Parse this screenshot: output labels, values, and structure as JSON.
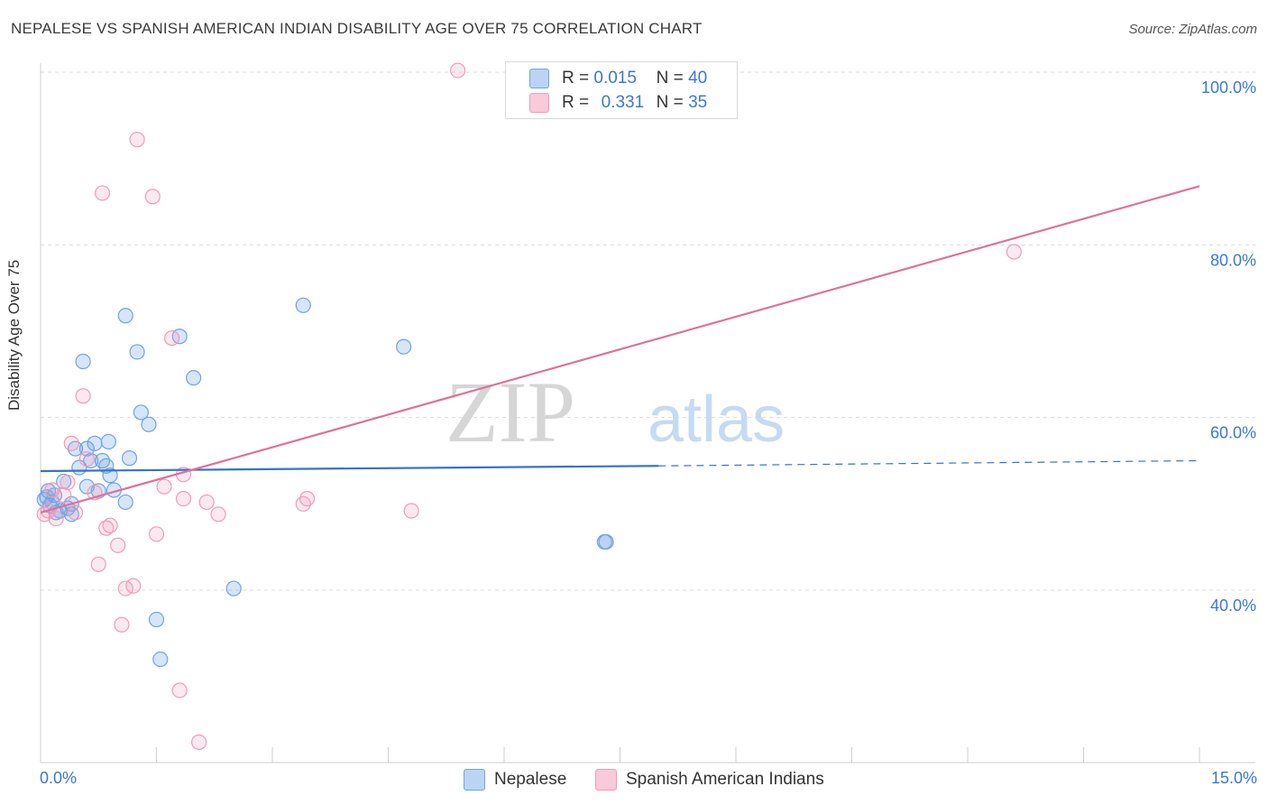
{
  "header": {
    "title": "NEPALESE VS SPANISH AMERICAN INDIAN DISABILITY AGE OVER 75 CORRELATION CHART",
    "source": "Source: ZipAtlas.com"
  },
  "watermark": {
    "part1": "ZIP",
    "part2": "atlas"
  },
  "legend": {
    "rows": [
      {
        "r_label": "R =",
        "r_value": "0.015",
        "n_label": "N =",
        "n_value": "40"
      },
      {
        "r_label": "R =",
        "r_value": "0.331",
        "n_label": "N =",
        "n_value": "35"
      }
    ],
    "bottom": [
      "Nepalese",
      "Spanish American Indians"
    ]
  },
  "chart_data": {
    "type": "scatter",
    "title": "NEPALESE VS SPANISH AMERICAN INDIAN DISABILITY AGE OVER 75 CORRELATION CHART",
    "xlabel": "",
    "ylabel": "Disability Age Over 75",
    "xlim": [
      0,
      15
    ],
    "ylim": [
      20,
      102
    ],
    "x_tick_labels": [
      "0.0%",
      "15.0%"
    ],
    "y_ticks": [
      40,
      60,
      80,
      100
    ],
    "y_tick_labels": [
      "40.0%",
      "60.0%",
      "80.0%",
      "100.0%"
    ],
    "colors": {
      "nepalese": "#6fa3e6",
      "nepalese_line": "#3474c8",
      "spanish": "#f29ab8",
      "spanish_line": "#e0709a",
      "axis_text": "#3a78d0"
    },
    "series": [
      {
        "name": "Nepalese",
        "R": 0.015,
        "N": 40,
        "trend": {
          "x_start": 0,
          "y_start": 53.8,
          "x_solid_end": 8.0,
          "y_solid_end": 54.4,
          "x_end": 15.0,
          "y_end": 55.0
        },
        "points": [
          [
            0.05,
            50.5
          ],
          [
            0.08,
            50.8
          ],
          [
            0.1,
            51.5
          ],
          [
            0.12,
            49.8
          ],
          [
            0.15,
            50.2
          ],
          [
            0.2,
            49.0
          ],
          [
            0.25,
            49.2
          ],
          [
            0.3,
            52.6
          ],
          [
            0.35,
            49.5
          ],
          [
            0.4,
            48.8
          ],
          [
            0.45,
            56.4
          ],
          [
            0.5,
            54.2
          ],
          [
            0.55,
            66.5
          ],
          [
            0.6,
            56.4
          ],
          [
            0.65,
            55.0
          ],
          [
            0.7,
            57.0
          ],
          [
            0.75,
            51.5
          ],
          [
            0.8,
            55.0
          ],
          [
            0.85,
            54.4
          ],
          [
            0.9,
            53.3
          ],
          [
            0.95,
            51.6
          ],
          [
            1.1,
            71.8
          ],
          [
            1.1,
            50.2
          ],
          [
            1.15,
            55.3
          ],
          [
            1.25,
            67.6
          ],
          [
            1.3,
            60.6
          ],
          [
            1.4,
            59.2
          ],
          [
            1.55,
            32.0
          ],
          [
            1.5,
            36.6
          ],
          [
            1.8,
            69.4
          ],
          [
            1.98,
            64.6
          ],
          [
            2.5,
            40.2
          ],
          [
            3.4,
            73.0
          ],
          [
            4.7,
            68.2
          ],
          [
            7.3,
            45.6
          ],
          [
            7.32,
            45.6
          ],
          [
            0.18,
            51.0
          ],
          [
            0.4,
            50.0
          ],
          [
            0.88,
            57.2
          ],
          [
            0.6,
            52.0
          ]
        ]
      },
      {
        "name": "Spanish American Indians",
        "R": 0.331,
        "N": 35,
        "trend": {
          "x_start": 0,
          "y_start": 49.0,
          "x_end": 15.0,
          "y_end": 86.8
        },
        "points": [
          [
            0.05,
            48.8
          ],
          [
            0.1,
            49.2
          ],
          [
            0.15,
            51.6
          ],
          [
            0.2,
            48.3
          ],
          [
            0.3,
            51.0
          ],
          [
            0.35,
            52.5
          ],
          [
            0.4,
            57.0
          ],
          [
            0.45,
            49.0
          ],
          [
            0.55,
            62.5
          ],
          [
            0.6,
            55.2
          ],
          [
            0.7,
            51.3
          ],
          [
            0.75,
            43.0
          ],
          [
            0.8,
            86.0
          ],
          [
            0.85,
            47.2
          ],
          [
            0.9,
            47.5
          ],
          [
            1.0,
            45.2
          ],
          [
            1.05,
            36.0
          ],
          [
            1.1,
            40.2
          ],
          [
            1.2,
            40.5
          ],
          [
            1.25,
            92.2
          ],
          [
            1.45,
            85.6
          ],
          [
            1.5,
            46.5
          ],
          [
            1.6,
            52.0
          ],
          [
            1.7,
            69.2
          ],
          [
            1.8,
            28.4
          ],
          [
            1.85,
            53.4
          ],
          [
            1.85,
            50.6
          ],
          [
            2.05,
            22.4
          ],
          [
            2.15,
            50.2
          ],
          [
            2.3,
            48.8
          ],
          [
            3.4,
            50.0
          ],
          [
            3.45,
            50.6
          ],
          [
            4.8,
            49.2
          ],
          [
            5.4,
            100.2
          ],
          [
            12.6,
            79.2
          ]
        ]
      }
    ]
  }
}
